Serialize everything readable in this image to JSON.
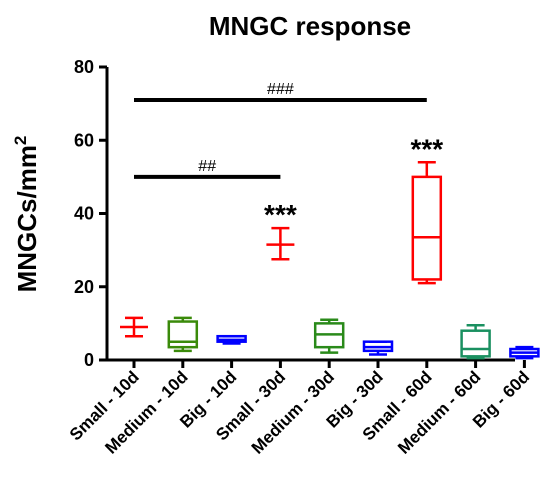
{
  "chart_data": {
    "type": "box",
    "title": "MNGC response",
    "ylabel": "MNGCs/mm",
    "ylabel_superscript": "2",
    "xlabel": "",
    "ylim": [
      0,
      80
    ],
    "yticks": [
      "0",
      "20",
      "40",
      "60",
      "80"
    ],
    "grid": false,
    "categories": [
      "Small - 10d",
      "Medium - 10d",
      "Big - 10d",
      "Small - 30d",
      "Medium - 30d",
      "Big - 30d",
      "Small - 60d",
      "Medium - 60d",
      "Big - 60d"
    ],
    "colors": [
      "#ff0000",
      "#3a8a0a",
      "#0000ff",
      "#ff0000",
      "#2a8a1a",
      "#0000ff",
      "#ff0000",
      "#1a9060",
      "#0000ff"
    ],
    "boxes": [
      {
        "min": 6.5,
        "q1": 9,
        "median": 9,
        "q3": 9,
        "max": 11.5
      },
      {
        "min": 2.5,
        "q1": 3.5,
        "median": 5,
        "q3": 10.5,
        "max": 11.5
      },
      {
        "min": 4.5,
        "q1": 5,
        "median": 5.5,
        "q3": 6.5,
        "max": 6.5
      },
      {
        "min": 27.5,
        "q1": 31.5,
        "median": 31.5,
        "q3": 31.5,
        "max": 36
      },
      {
        "min": 2,
        "q1": 3.5,
        "median": 7,
        "q3": 10,
        "max": 11
      },
      {
        "min": 1.5,
        "q1": 2.5,
        "median": 3.5,
        "q3": 5,
        "max": 5
      },
      {
        "min": 21,
        "q1": 22,
        "median": 33.5,
        "q3": 50,
        "max": 54
      },
      {
        "min": 0.5,
        "q1": 1,
        "median": 3,
        "q3": 8,
        "max": 9.5
      },
      {
        "min": 0.5,
        "q1": 1,
        "median": 2,
        "q3": 3,
        "max": 3.5
      }
    ],
    "significance_stars": [
      {
        "category_index": 3,
        "label": "***",
        "y": 42
      },
      {
        "category_index": 6,
        "label": "***",
        "y": 60
      }
    ],
    "comparison_bars": [
      {
        "from": 0,
        "to": 3,
        "y": 50,
        "label": "##"
      },
      {
        "from": 0,
        "to": 6,
        "y": 71,
        "label": "###"
      }
    ]
  }
}
